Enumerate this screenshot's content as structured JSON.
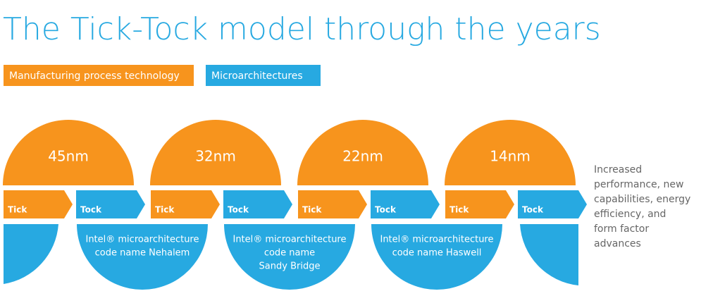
{
  "title": "The Tick-Tock model through the years",
  "legend": [
    {
      "label": "Manufacturing process technology",
      "color": "#f7941d"
    },
    {
      "label": "Microarchitectures",
      "color": "#27a9e1"
    }
  ],
  "process_nodes": [
    "45nm",
    "32nm",
    "22nm",
    "14nm"
  ],
  "steps": [
    "Tick",
    "Tock",
    "Tick",
    "Tock",
    "Tick",
    "Tock",
    "Tick",
    "Tock"
  ],
  "microarchitectures": [
    {
      "lines": [
        "Intel® microarchitecture",
        "code name Nehalem"
      ]
    },
    {
      "lines": [
        "Intel® microarchitecture",
        "code name",
        "Sandy Bridge"
      ]
    },
    {
      "lines": [
        "Intel® microarchitecture",
        "code name Haswell"
      ]
    }
  ],
  "note": [
    "Increased",
    "performance, new",
    "capabilities, energy",
    "efficiency, and",
    "form factor",
    "advances"
  ]
}
